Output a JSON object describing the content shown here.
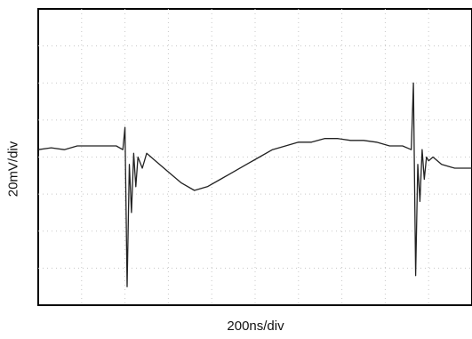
{
  "chart_data": {
    "type": "line",
    "title": "",
    "xlabel": "200ns/div",
    "ylabel": "20mV/div",
    "grid": true,
    "x_divisions": 10,
    "y_divisions": 8,
    "xlim": [
      0,
      10
    ],
    "ylim": [
      -4,
      4
    ],
    "x_units": "div",
    "y_units": "div",
    "series": [
      {
        "name": "",
        "x": [
          0,
          0.3,
          0.6,
          0.9,
          1.2,
          1.5,
          1.8,
          1.95,
          2.0,
          2.05,
          2.1,
          2.15,
          2.2,
          2.25,
          2.3,
          2.4,
          2.5,
          2.7,
          3.0,
          3.3,
          3.6,
          3.9,
          4.2,
          4.5,
          4.8,
          5.1,
          5.4,
          5.7,
          6.0,
          6.3,
          6.6,
          6.9,
          7.2,
          7.5,
          7.8,
          8.1,
          8.4,
          8.6,
          8.65,
          8.7,
          8.75,
          8.8,
          8.85,
          8.9,
          8.95,
          9.0,
          9.1,
          9.3,
          9.6,
          9.8,
          10.0
        ],
        "values": [
          0.2,
          0.25,
          0.2,
          0.3,
          0.3,
          0.3,
          0.3,
          0.2,
          0.8,
          -3.5,
          -0.2,
          -1.5,
          0.1,
          -0.8,
          0.0,
          -0.3,
          0.1,
          -0.1,
          -0.4,
          -0.7,
          -0.9,
          -0.8,
          -0.6,
          -0.4,
          -0.2,
          0.0,
          0.2,
          0.3,
          0.4,
          0.4,
          0.5,
          0.5,
          0.45,
          0.45,
          0.4,
          0.3,
          0.3,
          0.2,
          2.0,
          -3.2,
          -0.2,
          -1.2,
          0.2,
          -0.6,
          0.0,
          -0.1,
          0.0,
          -0.2,
          -0.3,
          -0.3,
          -0.3
        ]
      }
    ]
  }
}
